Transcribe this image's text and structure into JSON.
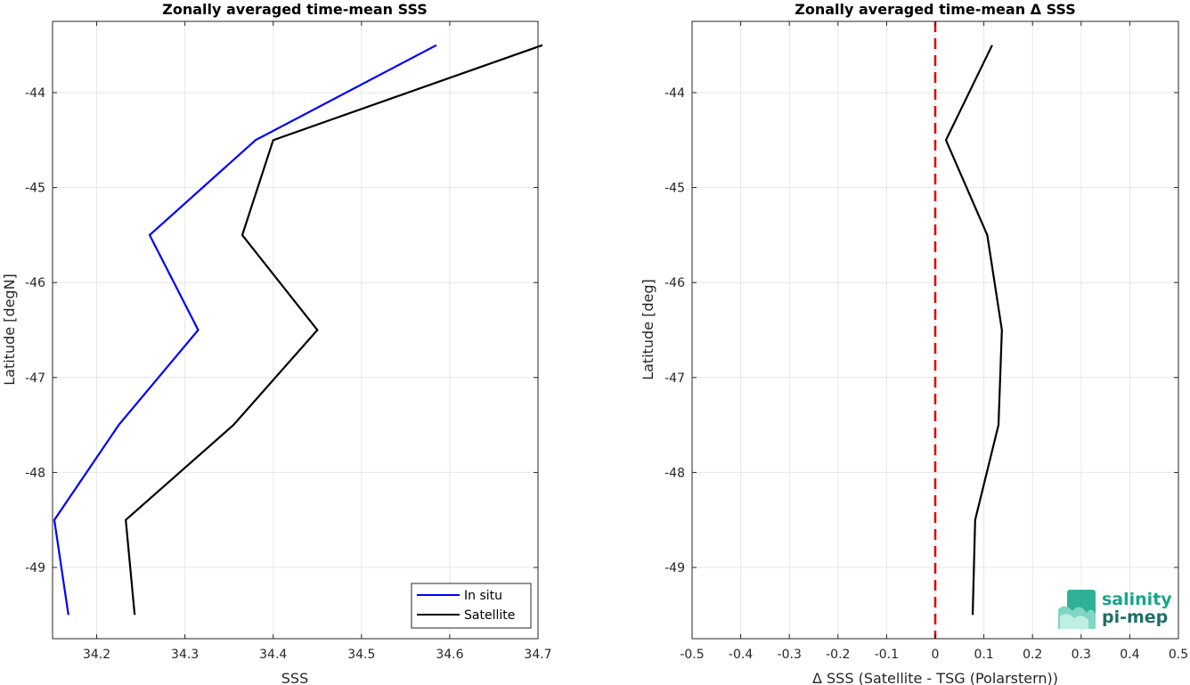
{
  "logo": {
    "line1": "salinity",
    "line2": "pi-mep",
    "color_line1": "#17a589",
    "color_line2": "#1f6f6a"
  },
  "chart_data": [
    {
      "type": "line",
      "title": "Zonally averaged time-mean SSS",
      "xlabel": "SSS",
      "ylabel": "Latitude [degN]",
      "xlim": [
        34.15,
        34.7
      ],
      "ylim": [
        -49.75,
        -43.25
      ],
      "xticks": [
        34.2,
        34.3,
        34.4,
        34.5,
        34.6,
        34.7
      ],
      "xtick_labels": [
        "34.2",
        "34.3",
        "34.4",
        "34.5",
        "34.6",
        "34.7"
      ],
      "yticks": [
        -44,
        -45,
        -46,
        -47,
        -48,
        -49
      ],
      "ytick_labels": [
        "-44",
        "-45",
        "-46",
        "-47",
        "-48",
        "-49"
      ],
      "grid": true,
      "legend_position": "bottom-right",
      "series": [
        {
          "name": "In situ",
          "color": "#0000ff",
          "x": [
            34.585,
            34.38,
            34.26,
            34.315,
            34.225,
            34.152,
            34.168
          ],
          "y": [
            -43.5,
            -44.5,
            -45.5,
            -46.5,
            -47.5,
            -48.5,
            -49.5
          ]
        },
        {
          "name": "Satellite",
          "color": "#000000",
          "x": [
            34.705,
            34.4,
            34.365,
            34.45,
            34.355,
            34.233,
            34.243
          ],
          "y": [
            -43.5,
            -44.5,
            -45.5,
            -46.5,
            -47.5,
            -48.5,
            -49.5
          ]
        }
      ]
    },
    {
      "type": "line",
      "title": "Zonally averaged time-mean Δ SSS",
      "xlabel": "Δ SSS (Satellite - TSG (Polarstern))",
      "ylabel": "Latitude [deg]",
      "xlim": [
        -0.5,
        0.5
      ],
      "ylim": [
        -49.75,
        -43.25
      ],
      "xticks": [
        -0.5,
        -0.4,
        -0.3,
        -0.2,
        -0.1,
        0,
        0.1,
        0.2,
        0.3,
        0.4,
        0.5
      ],
      "xtick_labels": [
        "-0.5",
        "-0.4",
        "-0.3",
        "-0.2",
        "-0.1",
        "0",
        "0.1",
        "0.2",
        "0.3",
        "0.4",
        "0.5"
      ],
      "yticks": [
        -44,
        -45,
        -46,
        -47,
        -48,
        -49
      ],
      "ytick_labels": [
        "-44",
        "-45",
        "-46",
        "-47",
        "-48",
        "-49"
      ],
      "grid": true,
      "reference_line": {
        "x": 0,
        "color": "#e00000",
        "style": "dashed"
      },
      "series": [
        {
          "color": "#000000",
          "x": [
            0.117,
            0.022,
            0.107,
            0.137,
            0.13,
            0.082,
            0.077
          ],
          "y": [
            -43.5,
            -44.5,
            -45.5,
            -46.5,
            -47.5,
            -48.5,
            -49.5
          ]
        }
      ]
    }
  ]
}
